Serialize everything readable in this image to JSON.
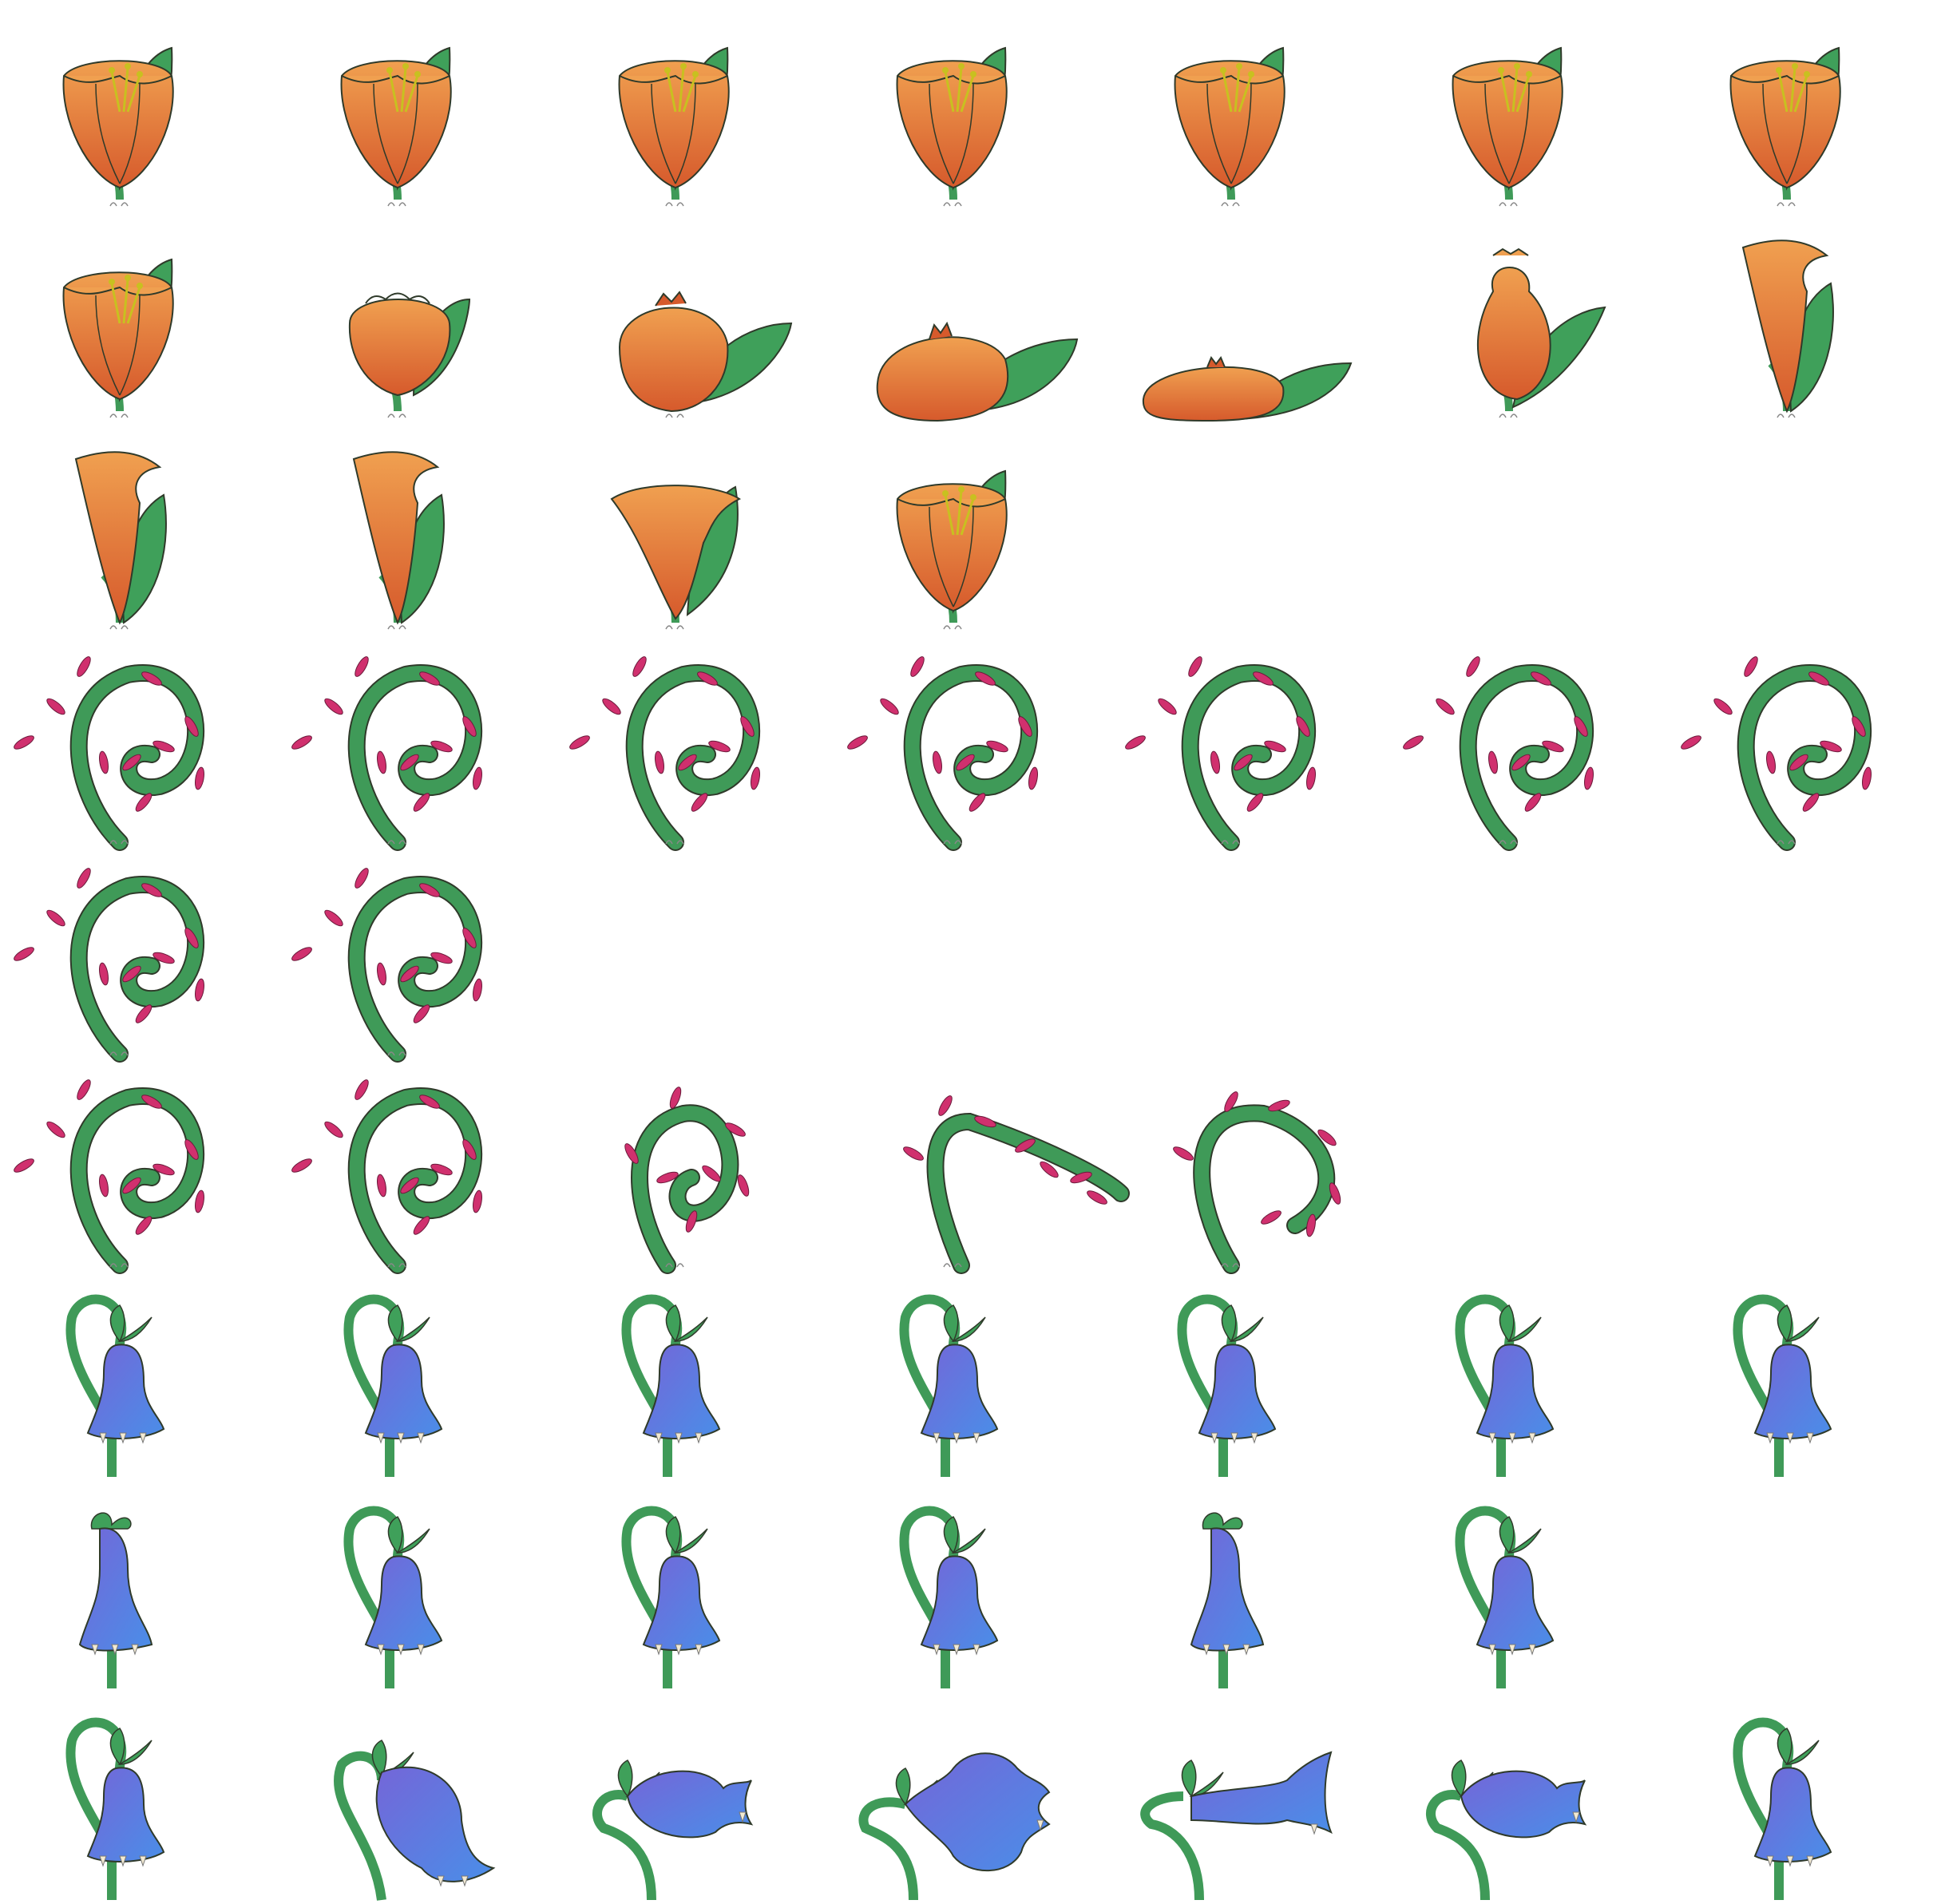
{
  "sheet": {
    "background": "#ffffff",
    "palette": {
      "orange_light": "#f0a050",
      "orange_dark": "#d65a2c",
      "leaf_green": "#3fa05a",
      "stem_green": "#3f9a58",
      "outline": "#2f3a2a",
      "stamen": "#c8c020",
      "thorn_pink": "#d0306e",
      "bell_blue": "#4a8ee8",
      "bell_purple": "#7466d8",
      "tooth": "#f2ead2"
    },
    "rows": [
      {
        "plant": "orange-flower",
        "pose": [
          "idle",
          "idle",
          "idle",
          "idle",
          "idle",
          "idle",
          "idle"
        ]
      },
      {
        "plant": "orange-flower",
        "pose": [
          "idle",
          "closing",
          "bud",
          "squash",
          "flat",
          "rise",
          "stretch"
        ]
      },
      {
        "plant": "orange-flower",
        "pose": [
          "stretch",
          "stretch",
          "open",
          "idle"
        ]
      },
      {
        "plant": "thorny-vine",
        "pose": [
          "curl",
          "curl",
          "curl",
          "curl",
          "curl",
          "curl",
          "curl"
        ]
      },
      {
        "plant": "thorny-vine",
        "pose": [
          "curl",
          "curl"
        ]
      },
      {
        "plant": "thorny-vine",
        "pose": [
          "curl",
          "curl",
          "tight",
          "lash",
          "recoil"
        ]
      },
      {
        "plant": "blue-bell",
        "pose": [
          "droop",
          "droop",
          "droop",
          "droop",
          "droop",
          "droop",
          "droop"
        ]
      },
      {
        "plant": "blue-bell",
        "pose": [
          "upright",
          "droop",
          "droop",
          "droop",
          "upright",
          "droop"
        ]
      },
      {
        "plant": "blue-bell",
        "pose": [
          "droop",
          "swell",
          "tilt",
          "puff",
          "bite",
          "tilt",
          "droop"
        ]
      }
    ]
  }
}
